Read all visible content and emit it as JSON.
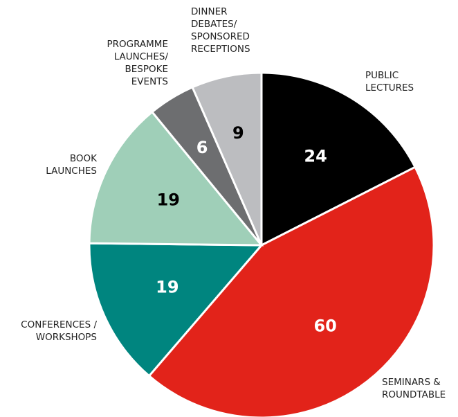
{
  "chart_data": {
    "type": "pie",
    "categories": [
      "PUBLIC\nLECTURES",
      "SEMINARS &\nROUNDTABLE",
      "CONFERENCES /\nWORKSHOPS",
      "BOOK\nLAUNCHES",
      "PROGRAMME\nLAUNCHES/\nBESPOKE\nEVENTS",
      "DINNER\nDEBATES/\nSPONSORED\nRECEPTIONS"
    ],
    "values": [
      24,
      60,
      19,
      19,
      6,
      9
    ],
    "colors": [
      "#000000",
      "#e2231a",
      "#00857f",
      "#9fcfb8",
      "#6d6e70",
      "#bcbdc0"
    ]
  }
}
